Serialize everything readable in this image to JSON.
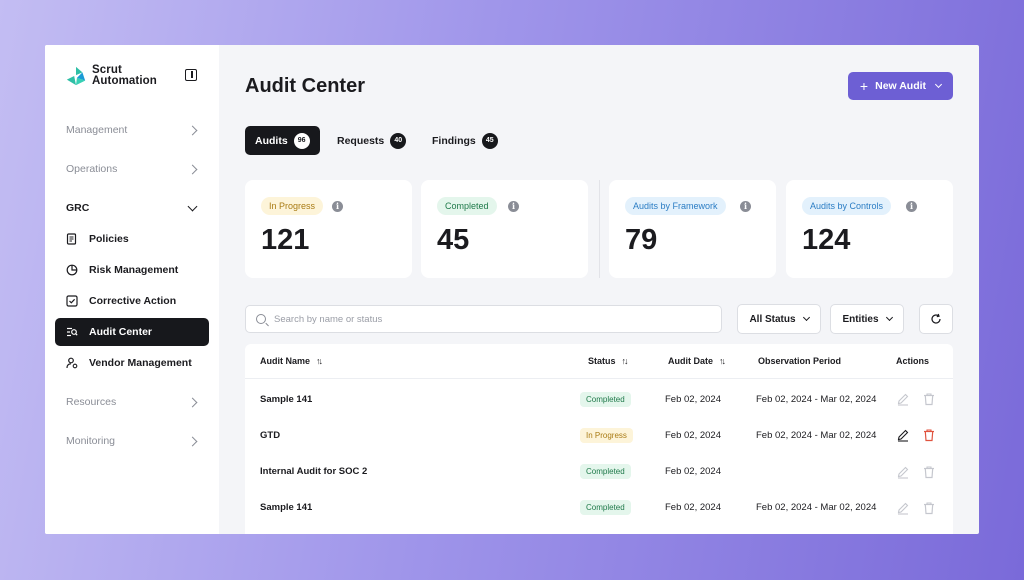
{
  "brand": {
    "line1": "Scrut",
    "line2": "Automation"
  },
  "sidebar": {
    "sections": [
      {
        "label": "Management",
        "open": false
      },
      {
        "label": "Operations",
        "open": false
      },
      {
        "label": "GRC",
        "open": true
      },
      {
        "label": "Resources",
        "open": false
      },
      {
        "label": "Monitoring",
        "open": false
      }
    ],
    "grc_items": [
      {
        "label": "Policies",
        "icon": "policy-document-icon",
        "active": false
      },
      {
        "label": "Risk Management",
        "icon": "pie-chart-icon",
        "active": false
      },
      {
        "label": "Corrective Action",
        "icon": "checkbox-icon",
        "active": false
      },
      {
        "label": "Audit Center",
        "icon": "audit-list-icon",
        "active": true
      },
      {
        "label": "Vendor Management",
        "icon": "user-gear-icon",
        "active": false
      }
    ]
  },
  "header": {
    "title": "Audit Center",
    "new_audit_label": "New Audit"
  },
  "tabs": [
    {
      "label": "Audits",
      "count": "96",
      "active": true
    },
    {
      "label": "Requests",
      "count": "40",
      "active": false
    },
    {
      "label": "Findings",
      "count": "45",
      "active": false
    }
  ],
  "stats": [
    {
      "label": "In Progress",
      "value": "121",
      "color": "yellow"
    },
    {
      "label": "Completed",
      "value": "45",
      "color": "green"
    },
    {
      "label": "Audits by Framework",
      "value": "79",
      "color": "blue"
    },
    {
      "label": "Audits by Controls",
      "value": "124",
      "color": "blue"
    }
  ],
  "filters": {
    "search_placeholder": "Search by name or status",
    "status_label": "All Status",
    "entities_label": "Entities"
  },
  "table": {
    "columns": [
      "Audit Name",
      "Status",
      "Audit Date",
      "Observation Period",
      "Actions"
    ],
    "rows": [
      {
        "name": "Sample 141",
        "status": "Completed",
        "date": "Feb 02, 2024",
        "period": "Feb 02, 2024 - Mar 02, 2024",
        "actions_enabled": false
      },
      {
        "name": "GTD",
        "status": "In Progress",
        "date": "Feb 02, 2024",
        "period": "Feb 02, 2024 - Mar 02, 2024",
        "actions_enabled": true
      },
      {
        "name": "Internal Audit for SOC 2",
        "status": "Completed",
        "date": "Feb 02, 2024",
        "period": "",
        "actions_enabled": false
      },
      {
        "name": "Sample 141",
        "status": "Completed",
        "date": "Feb 02, 2024",
        "period": "Feb 02, 2024 - Mar 02, 2024",
        "actions_enabled": false
      }
    ]
  },
  "colors": {
    "accent": "#6d5fd4",
    "dark": "#17181c",
    "danger": "#e0533f"
  }
}
